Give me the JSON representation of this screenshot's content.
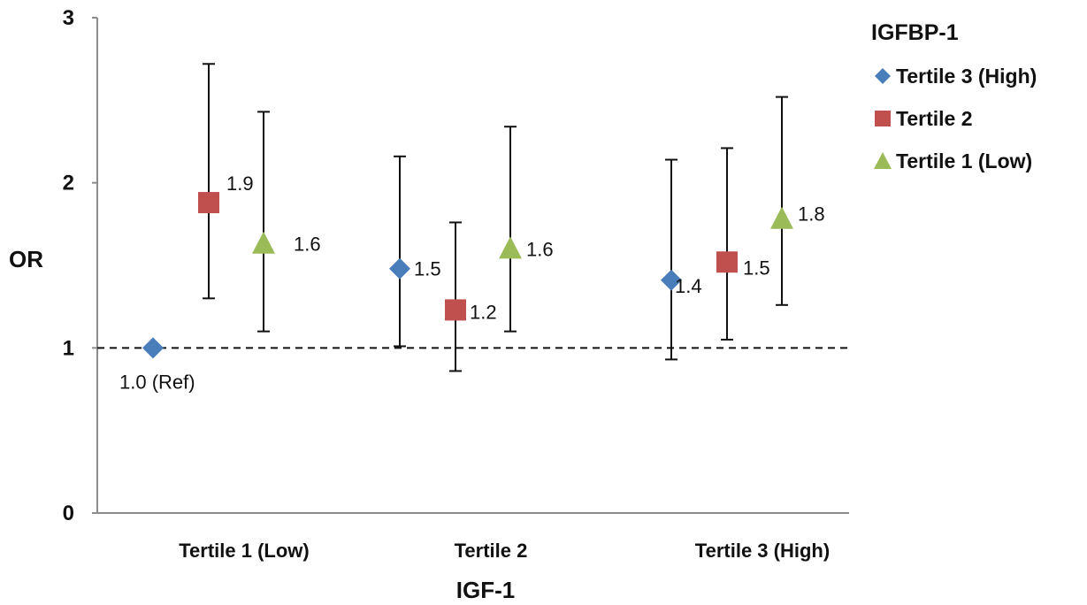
{
  "chart_data": {
    "type": "scatter",
    "ylabel": "OR",
    "xlabel": "IGF-1",
    "categories": [
      "Tertile 1 (Low)",
      "Tertile 2",
      "Tertile 3 (High)"
    ],
    "ylim": [
      0,
      3
    ],
    "yticks": [
      "0",
      "1",
      "2",
      "3"
    ],
    "ytick_values": [
      0,
      1,
      2,
      3
    ],
    "reference_line": 1.0,
    "grid": false,
    "legend": {
      "title": "IGFBP-1",
      "placement": "right"
    },
    "series": [
      {
        "name": "Tertile 3 (High)",
        "marker": "diamond",
        "color": "#4a7ebb",
        "values": [
          1.0,
          1.48,
          1.41
        ],
        "ci_low": [
          null,
          1.01,
          0.93
        ],
        "ci_high": [
          null,
          2.16,
          2.14
        ],
        "labels": [
          "1.0 (Ref)",
          "1.5",
          "1.4"
        ]
      },
      {
        "name": "Tertile 2",
        "marker": "square",
        "color": "#c0504d",
        "values": [
          1.88,
          1.23,
          1.52
        ],
        "ci_low": [
          1.3,
          0.86,
          1.05
        ],
        "ci_high": [
          2.72,
          1.76,
          2.21
        ],
        "labels": [
          "1.9",
          "1.2",
          "1.5"
        ]
      },
      {
        "name": "Tertile 1 (Low)",
        "marker": "triangle",
        "color": "#9bbb59",
        "values": [
          1.63,
          1.6,
          1.78
        ],
        "ci_low": [
          1.1,
          1.1,
          1.26
        ],
        "ci_high": [
          2.43,
          2.34,
          2.52
        ],
        "labels": [
          "1.6",
          "1.6",
          "1.8"
        ]
      }
    ]
  }
}
